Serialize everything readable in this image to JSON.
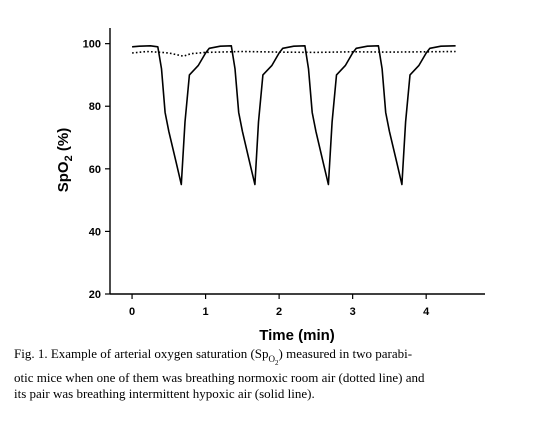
{
  "chart_data": {
    "type": "line",
    "title": "",
    "xlabel": "Time (min)",
    "ylabel_main": "SpO",
    "ylabel_sub": "2",
    "ylabel_unit": " (%)",
    "xlim": [
      -0.3,
      4.8
    ],
    "ylim": [
      20,
      105
    ],
    "xticks": [
      0,
      1,
      2,
      3,
      4
    ],
    "yticks": [
      20,
      40,
      60,
      80,
      100
    ],
    "grid": false,
    "series": [
      {
        "style": "solid",
        "x": [
          0,
          0.1,
          0.25,
          0.35,
          0.4,
          0.45,
          0.5,
          0.6,
          0.67,
          0.72,
          0.78,
          0.9,
          1.0,
          1.05,
          1.2,
          1.35,
          1.4,
          1.45,
          1.5,
          1.6,
          1.67,
          1.72,
          1.78,
          1.9,
          2.0,
          2.05,
          2.2,
          2.35,
          2.4,
          2.45,
          2.5,
          2.6,
          2.67,
          2.72,
          2.78,
          2.9,
          3.0,
          3.05,
          3.2,
          3.35,
          3.4,
          3.45,
          3.5,
          3.6,
          3.67,
          3.72,
          3.78,
          3.9,
          4.0,
          4.05,
          4.2,
          4.4
        ],
        "values": [
          99,
          99.2,
          99.3,
          99,
          92,
          78,
          72,
          62,
          55,
          75,
          90,
          93,
          97,
          98.5,
          99.2,
          99.3,
          92,
          78,
          72,
          62,
          55,
          75,
          90,
          93,
          97,
          98.5,
          99.2,
          99.3,
          92,
          78,
          72,
          62,
          55,
          75,
          90,
          93,
          97,
          98.5,
          99.2,
          99.3,
          92,
          78,
          72,
          62,
          55,
          75,
          90,
          93,
          97,
          98.5,
          99.2,
          99.3
        ]
      },
      {
        "style": "dotted",
        "x": [
          0,
          0.2,
          0.4,
          0.5,
          0.6,
          0.7,
          0.8,
          1.0,
          1.5,
          2.0,
          2.5,
          3.0,
          3.5,
          4.0,
          4.4
        ],
        "values": [
          97,
          97.5,
          97.2,
          97,
          96.5,
          96,
          96.8,
          97.2,
          97.5,
          97.3,
          97.2,
          97.4,
          97.3,
          97.4,
          97.5
        ]
      }
    ]
  },
  "caption": {
    "line1_pre": "Fig. 1. Example of arterial oxygen saturation (Sp",
    "line1_sub": "O",
    "line1_subsub": "2",
    "line1_post": ") measured in two parabi-",
    "line2": "otic mice when one of them was breathing normoxic room air (dotted line) and",
    "line3": "its pair was breathing intermittent hypoxic air (solid line)."
  }
}
